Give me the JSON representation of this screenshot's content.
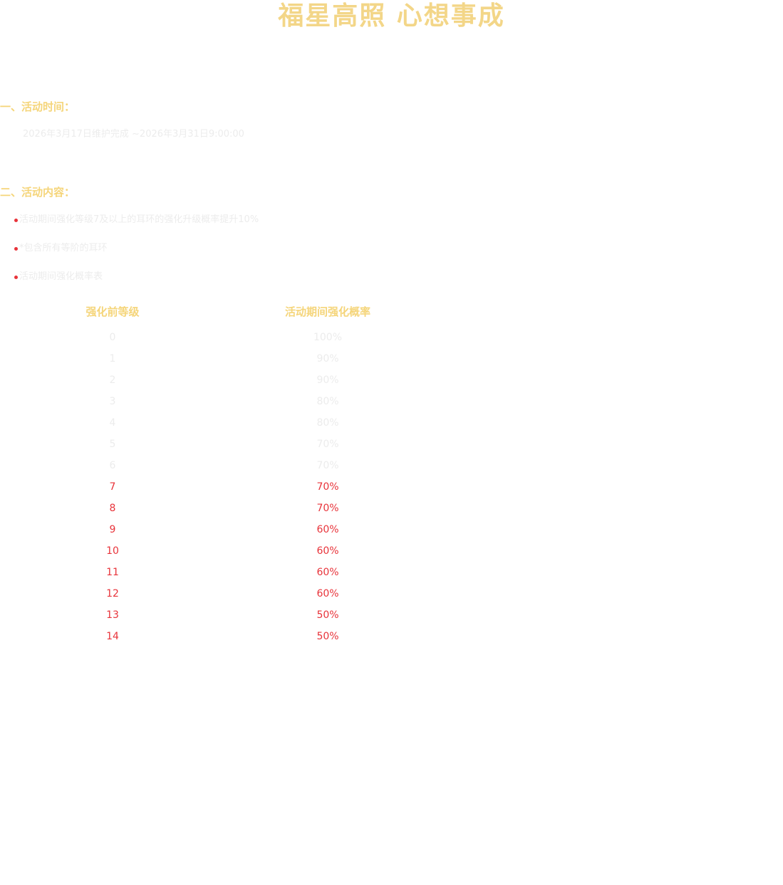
{
  "header": {
    "title": "福星高照 心想事成"
  },
  "sections": [
    {
      "heading": "一、活动时间：",
      "items": [
        "2026年3月17日维护完成 ~2026年3月31日9:00:00"
      ]
    },
    {
      "heading": "二、活动内容：",
      "bullets": [
        "活动期间强化等级7及以上的耳环的强化升级概率提升10%",
        "*包含所有等阶的耳环",
        "活动期间强化概率表"
      ]
    }
  ],
  "table": {
    "columns": [
      "强化前等级",
      "活动期间强化概率"
    ],
    "rows": [
      {
        "cells": [
          "0",
          "100%"
        ],
        "color": "#ececec"
      },
      {
        "cells": [
          "1",
          "90%"
        ],
        "color": "#ececec"
      },
      {
        "cells": [
          "2",
          "90%"
        ],
        "color": "#ececec"
      },
      {
        "cells": [
          "3",
          "80%"
        ],
        "color": "#ececec"
      },
      {
        "cells": [
          "4",
          "80%"
        ],
        "color": "#ececec"
      },
      {
        "cells": [
          "5",
          "70%"
        ],
        "color": "#ececec"
      },
      {
        "cells": [
          "6",
          "70%"
        ],
        "color": "#ececec"
      },
      {
        "cells": [
          "7",
          "70%"
        ],
        "color": "#e8333a"
      },
      {
        "cells": [
          "8",
          "70%"
        ],
        "color": "#e8333a"
      },
      {
        "cells": [
          "9",
          "60%"
        ],
        "color": "#e8333a"
      },
      {
        "cells": [
          "10",
          "60%"
        ],
        "color": "#e8333a"
      },
      {
        "cells": [
          "11",
          "60%"
        ],
        "color": "#e8333a"
      },
      {
        "cells": [
          "12",
          "60%"
        ],
        "color": "#e8333a"
      },
      {
        "cells": [
          "13",
          "50%"
        ],
        "color": "#e8333a"
      },
      {
        "cells": [
          "14",
          "50%"
        ],
        "color": "#e8333a"
      }
    ]
  }
}
